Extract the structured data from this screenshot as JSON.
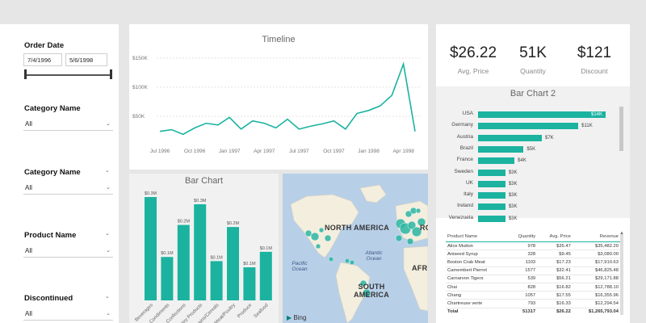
{
  "filters": {
    "order_date": {
      "label": "Order Date",
      "start": "7/4/1996",
      "end": "5/6/1998"
    },
    "category_name_1": {
      "label": "Category Name",
      "value": "All"
    },
    "category_name_2": {
      "label": "Category Name",
      "value": "All"
    },
    "product_name": {
      "label": "Product Name",
      "value": "All"
    },
    "discontinued": {
      "label": "Discontinued",
      "value": "All"
    }
  },
  "timeline": {
    "title": "Timeline",
    "chart_data": {
      "type": "line",
      "title": "Timeline",
      "y_ticks": [
        "$150K",
        "$100K",
        "$50K"
      ],
      "x_ticks": [
        "Jul 1996",
        "Oct 1996",
        "Jan 1997",
        "Apr 1997",
        "Jul 1997",
        "Oct 1997",
        "Jan 1998",
        "Apr 1998"
      ],
      "ylim": [
        0,
        150000
      ],
      "x": [
        "1996-07",
        "1996-08",
        "1996-09",
        "1996-10",
        "1996-11",
        "1996-12",
        "1997-01",
        "1997-02",
        "1997-03",
        "1997-04",
        "1997-05",
        "1997-06",
        "1997-07",
        "1997-08",
        "1997-09",
        "1997-10",
        "1997-11",
        "1997-12",
        "1998-01",
        "1998-02",
        "1998-03",
        "1998-04",
        "1998-05"
      ],
      "values": [
        24000,
        27000,
        19000,
        30000,
        38000,
        35000,
        48000,
        28000,
        42000,
        38000,
        30000,
        45000,
        28000,
        33000,
        37000,
        42000,
        28000,
        55000,
        60000,
        68000,
        86000,
        140000,
        24000
      ],
      "color": "#1bb3a0"
    }
  },
  "barchart": {
    "title": "Bar Chart",
    "chart_data": {
      "type": "bar",
      "title": "Bar Chart",
      "categories": [
        "Beverages",
        "Condiments",
        "Confections",
        "Dairy Products",
        "Grains/Cereals",
        "Meat/Poultry",
        "Produce",
        "Seafood"
      ],
      "values": [
        0.3,
        0.1,
        0.2,
        0.3,
        0.1,
        0.2,
        0.1,
        0.1
      ],
      "data_labels": [
        "$0.3M",
        "$0.1M",
        "$0.2M",
        "$0.3M",
        "$0.1M",
        "$0.2M",
        "$0.1M",
        "$0.1M"
      ],
      "heights_rel": [
        1.0,
        0.42,
        0.73,
        0.93,
        0.38,
        0.71,
        0.32,
        0.47
      ],
      "color": "#1bb3a0"
    }
  },
  "map": {
    "labels": {
      "na": "NORTH AMERICA",
      "sa": "SOUTH AMERICA",
      "af": "AFR",
      "eu": "RO",
      "atl": "Atlantic Ocean",
      "pac": "Pacific Ocean"
    },
    "brand": "Bing",
    "bubble_color": "#2ab5a3"
  },
  "kpis": [
    {
      "value": "$26.22",
      "label": "Avg. Price"
    },
    {
      "value": "51K",
      "label": "Quantity"
    },
    {
      "value": "$121",
      "label": "Discount"
    }
  ],
  "barchart2": {
    "title": "Bar Chart 2",
    "chart_data": {
      "type": "bar",
      "orientation": "horizontal",
      "title": "Bar Chart 2",
      "categories": [
        "USA",
        "Germany",
        "Austria",
        "Brazil",
        "France",
        "Sweden",
        "UK",
        "Italy",
        "Ireland",
        "Venezuela"
      ],
      "values": [
        14,
        11,
        7,
        5,
        4,
        3,
        3,
        3,
        3,
        3
      ],
      "data_labels": [
        "$14K",
        "$11K",
        "$7K",
        "$5K",
        "$4K",
        "$3K",
        "$3K",
        "$3K",
        "$3K",
        "$3K"
      ],
      "color": "#1bb3a0"
    }
  },
  "table": {
    "headers": [
      "Product Name",
      "Quantity",
      "Avg. Price",
      "Revenue"
    ],
    "rows": [
      [
        "Alice Mutton",
        "978",
        "$35.47",
        "$35,482.20"
      ],
      [
        "Aniseed Syrup",
        "328",
        "$9.45",
        "$3,080.00"
      ],
      [
        "Boston Crab Meat",
        "1103",
        "$17.23",
        "$17,910.63"
      ],
      [
        "Camembert Pierrot",
        "1577",
        "$32.41",
        "$46,825.48"
      ],
      [
        "Carnarvon Tigers",
        "539",
        "$56.21",
        "$29,171.88"
      ],
      [
        "Chai",
        "828",
        "$16.82",
        "$12,788.10"
      ],
      [
        "Chang",
        "1057",
        "$17.55",
        "$16,355.96"
      ],
      [
        "Chartreuse verte",
        "793",
        "$16.33",
        "$12,294.54"
      ]
    ],
    "total": [
      "Total",
      "51317",
      "$26.22",
      "$1,265,793.04"
    ]
  }
}
